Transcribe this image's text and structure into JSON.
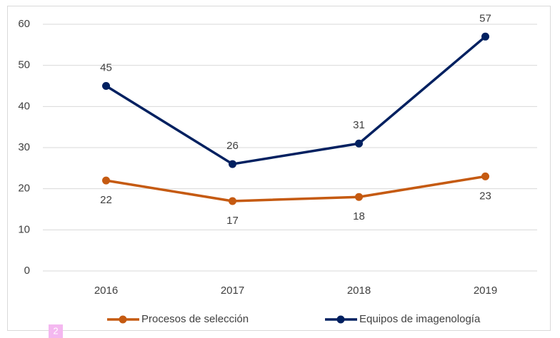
{
  "chart_data": {
    "type": "line",
    "categories": [
      "2016",
      "2017",
      "2018",
      "2019"
    ],
    "series": [
      {
        "name": "Procesos de selección",
        "color": "#c55a11",
        "values": [
          22,
          17,
          18,
          23
        ],
        "label_position": "below"
      },
      {
        "name": "Equipos de imagenología",
        "color": "#002060",
        "values": [
          45,
          26,
          31,
          57
        ],
        "label_position": "above"
      }
    ],
    "ylim": [
      0,
      60
    ],
    "yticks": [
      0,
      10,
      20,
      30,
      40,
      50,
      60
    ],
    "grid": true,
    "legend": "bottom",
    "annotations": [
      "2"
    ]
  }
}
